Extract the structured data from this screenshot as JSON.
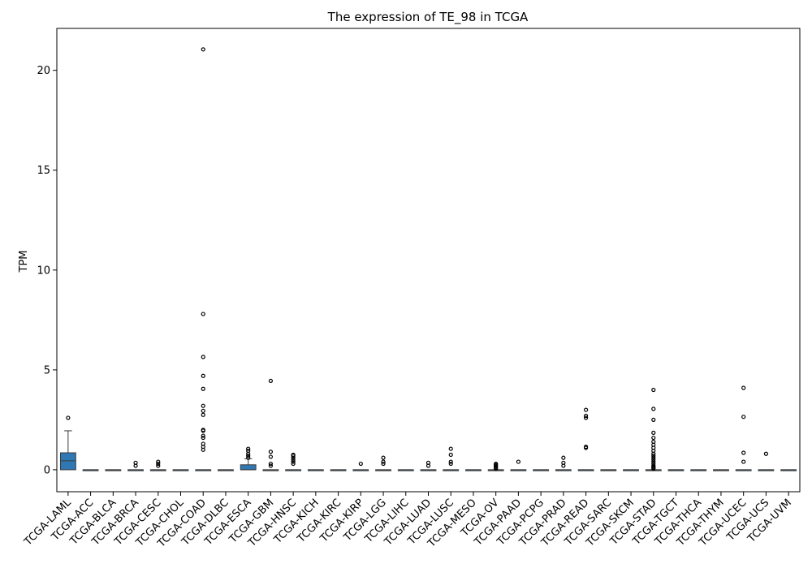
{
  "chart_data": {
    "type": "box",
    "title": "The expression of TE_98 in TCGA",
    "xlabel": "",
    "ylabel": "TPM",
    "ylim": [
      -1.1,
      22.1
    ],
    "yticks": [
      0,
      5,
      10,
      15,
      20
    ],
    "grid": false,
    "legend": "none",
    "box_color": "#2f78b3",
    "categories": [
      "TCGA-LAML",
      "TCGA-ACC",
      "TCGA-BLCA",
      "TCGA-BRCA",
      "TCGA-CESC",
      "TCGA-CHOL",
      "TCGA-COAD",
      "TCGA-DLBC",
      "TCGA-ESCA",
      "TCGA-GBM",
      "TCGA-HNSC",
      "TCGA-KICH",
      "TCGA-KIRC",
      "TCGA-KIRP",
      "TCGA-LGG",
      "TCGA-LIHC",
      "TCGA-LUAD",
      "TCGA-LUSC",
      "TCGA-MESO",
      "TCGA-OV",
      "TCGA-PAAD",
      "TCGA-PCPG",
      "TCGA-PRAD",
      "TCGA-READ",
      "TCGA-SARC",
      "TCGA-SKCM",
      "TCGA-STAD",
      "TCGA-TGCT",
      "TCGA-THCA",
      "TCGA-THYM",
      "TCGA-UCEC",
      "TCGA-UCS",
      "TCGA-UVM"
    ],
    "boxes": [
      {
        "q1": 0.0,
        "median": 0.45,
        "q3": 0.85,
        "whislo": 0.0,
        "whishi": 1.95,
        "fliers": [
          2.6
        ]
      },
      {
        "q1": 0,
        "median": 0,
        "q3": 0,
        "whislo": 0,
        "whishi": 0,
        "fliers": []
      },
      {
        "q1": 0,
        "median": 0,
        "q3": 0,
        "whislo": 0,
        "whishi": 0,
        "fliers": []
      },
      {
        "q1": 0,
        "median": 0,
        "q3": 0,
        "whislo": 0,
        "whishi": 0,
        "fliers": [
          0.2,
          0.35
        ]
      },
      {
        "q1": 0,
        "median": 0,
        "q3": 0,
        "whislo": 0,
        "whishi": 0,
        "fliers": [
          0.2,
          0.3,
          0.4
        ]
      },
      {
        "q1": 0,
        "median": 0,
        "q3": 0,
        "whislo": 0,
        "whishi": 0,
        "fliers": []
      },
      {
        "q1": 0,
        "median": 0,
        "q3": 0,
        "whislo": 0,
        "whishi": 0,
        "fliers": [
          1.0,
          1.15,
          1.3,
          1.6,
          1.7,
          1.95,
          2.0,
          2.75,
          2.95,
          3.2,
          4.05,
          4.7,
          5.65,
          7.8,
          21.05
        ]
      },
      {
        "q1": 0,
        "median": 0,
        "q3": 0,
        "whislo": 0,
        "whishi": 0,
        "fliers": []
      },
      {
        "q1": 0.0,
        "median": 0.0,
        "q3": 0.25,
        "whislo": 0.0,
        "whishi": 0.55,
        "fliers": [
          0.6,
          0.7,
          0.8,
          0.95,
          1.05
        ]
      },
      {
        "q1": 0,
        "median": 0,
        "q3": 0,
        "whislo": 0,
        "whishi": 0,
        "fliers": [
          0.2,
          0.3,
          0.65,
          0.9,
          4.45
        ]
      },
      {
        "q1": 0,
        "median": 0,
        "q3": 0,
        "whislo": 0,
        "whishi": 0,
        "fliers": [
          0.3,
          0.4,
          0.5,
          0.6,
          0.7,
          0.75
        ]
      },
      {
        "q1": 0,
        "median": 0,
        "q3": 0,
        "whislo": 0,
        "whishi": 0,
        "fliers": []
      },
      {
        "q1": 0,
        "median": 0,
        "q3": 0,
        "whislo": 0,
        "whishi": 0,
        "fliers": []
      },
      {
        "q1": 0,
        "median": 0,
        "q3": 0,
        "whislo": 0,
        "whishi": 0,
        "fliers": [
          0.3
        ]
      },
      {
        "q1": 0,
        "median": 0,
        "q3": 0,
        "whislo": 0,
        "whishi": 0,
        "fliers": [
          0.3,
          0.4,
          0.6
        ]
      },
      {
        "q1": 0,
        "median": 0,
        "q3": 0,
        "whislo": 0,
        "whishi": 0,
        "fliers": []
      },
      {
        "q1": 0,
        "median": 0,
        "q3": 0,
        "whislo": 0,
        "whishi": 0,
        "fliers": [
          0.2,
          0.35
        ]
      },
      {
        "q1": 0,
        "median": 0,
        "q3": 0,
        "whislo": 0,
        "whishi": 0,
        "fliers": [
          0.3,
          0.4,
          0.75,
          1.05
        ]
      },
      {
        "q1": 0,
        "median": 0,
        "q3": 0,
        "whislo": 0,
        "whishi": 0,
        "fliers": []
      },
      {
        "q1": 0,
        "median": 0,
        "q3": 0,
        "whislo": 0,
        "whishi": 0,
        "fliers": [
          0.05,
          0.1,
          0.15,
          0.2,
          0.25,
          0.3
        ]
      },
      {
        "q1": 0,
        "median": 0,
        "q3": 0,
        "whislo": 0,
        "whishi": 0,
        "fliers": [
          0.4
        ]
      },
      {
        "q1": 0,
        "median": 0,
        "q3": 0,
        "whislo": 0,
        "whishi": 0,
        "fliers": []
      },
      {
        "q1": 0,
        "median": 0,
        "q3": 0,
        "whislo": 0,
        "whishi": 0,
        "fliers": [
          0.2,
          0.35,
          0.6
        ]
      },
      {
        "q1": 0,
        "median": 0,
        "q3": 0,
        "whislo": 0,
        "whishi": 0,
        "fliers": [
          1.1,
          1.15,
          2.6,
          2.7,
          3.0
        ]
      },
      {
        "q1": 0,
        "median": 0,
        "q3": 0,
        "whislo": 0,
        "whishi": 0,
        "fliers": []
      },
      {
        "q1": 0,
        "median": 0,
        "q3": 0,
        "whislo": 0,
        "whishi": 0,
        "fliers": []
      },
      {
        "q1": 0,
        "median": 0,
        "q3": 0,
        "whislo": 0,
        "whishi": 0,
        "fliers": [
          0.05,
          0.1,
          0.15,
          0.2,
          0.3,
          0.4,
          0.5,
          0.6,
          0.7,
          0.8,
          0.95,
          1.1,
          1.25,
          1.4,
          1.6,
          1.85,
          2.5,
          3.05,
          4.0
        ]
      },
      {
        "q1": 0,
        "median": 0,
        "q3": 0,
        "whislo": 0,
        "whishi": 0,
        "fliers": []
      },
      {
        "q1": 0,
        "median": 0,
        "q3": 0,
        "whislo": 0,
        "whishi": 0,
        "fliers": []
      },
      {
        "q1": 0,
        "median": 0,
        "q3": 0,
        "whislo": 0,
        "whishi": 0,
        "fliers": []
      },
      {
        "q1": 0,
        "median": 0,
        "q3": 0,
        "whislo": 0,
        "whishi": 0,
        "fliers": [
          0.4,
          0.85,
          2.65,
          4.1
        ]
      },
      {
        "q1": 0,
        "median": 0,
        "q3": 0,
        "whislo": 0,
        "whishi": 0,
        "fliers": [
          0.8
        ]
      },
      {
        "q1": 0,
        "median": 0,
        "q3": 0,
        "whislo": 0,
        "whishi": 0,
        "fliers": []
      }
    ]
  }
}
